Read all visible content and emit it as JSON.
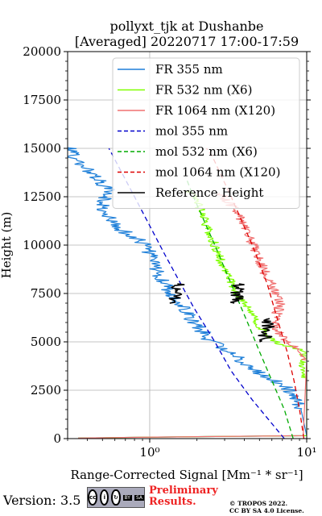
{
  "chart_data": {
    "type": "line",
    "title_line1": "pollyxt_tjk at Dushanbe",
    "title_line2": "[Averaged] 20220717 17:00-17:59",
    "xlabel": "Range-Corrected Signal [Mm⁻¹ * sr⁻¹]",
    "ylabel": "Height (m)",
    "x_scale": "log",
    "xlim": [
      0.3,
      10
    ],
    "ylim": [
      0,
      20000
    ],
    "x_ticks": [
      1,
      10
    ],
    "x_tick_labels": [
      "10⁰",
      "10¹"
    ],
    "y_ticks": [
      0,
      2500,
      5000,
      7500,
      10000,
      12500,
      15000,
      17500,
      20000
    ],
    "grid": true,
    "legend_position": "top-right",
    "legend": [
      {
        "label": "FR 355 nm",
        "color": "#1e7fd8",
        "style": "solid"
      },
      {
        "label": "FR 532 nm (X6)",
        "color": "#80ff00",
        "style": "solid"
      },
      {
        "label": "FR 1064 nm (X120)",
        "color": "#f07070",
        "style": "solid"
      },
      {
        "label": "mol 355 nm",
        "color": "#0000cc",
        "style": "dashed"
      },
      {
        "label": "mol 532 nm (X6)",
        "color": "#00aa00",
        "style": "dashed"
      },
      {
        "label": "mol 1064 nm (X120)",
        "color": "#dd0000",
        "style": "dashed"
      },
      {
        "label": "Reference Height",
        "color": "#000000",
        "style": "solid"
      }
    ],
    "series": [
      {
        "name": "FR 355 nm",
        "color": "#1e7fd8",
        "dash": "",
        "width": 1.2,
        "noise": 0.05,
        "points": [
          [
            0.35,
            30
          ],
          [
            2,
            100
          ],
          [
            10,
            150
          ],
          [
            9.2,
            1500
          ],
          [
            8.5,
            2200
          ],
          [
            7.2,
            2700
          ],
          [
            5.5,
            3200
          ],
          [
            4.5,
            3600
          ],
          [
            3.6,
            4200
          ],
          [
            3.0,
            4600
          ],
          [
            2.4,
            5100
          ],
          [
            2.2,
            5500
          ],
          [
            1.9,
            6000
          ],
          [
            1.7,
            6700
          ],
          [
            1.45,
            7300
          ],
          [
            1.25,
            8000
          ],
          [
            1.05,
            9000
          ],
          [
            0.95,
            10000
          ],
          [
            0.6,
            11000
          ],
          [
            0.5,
            12000
          ],
          [
            0.55,
            12800
          ],
          [
            0.45,
            13500
          ],
          [
            0.33,
            14500
          ],
          [
            0.3,
            15300
          ]
        ]
      },
      {
        "name": "FR 532 nm (X6)",
        "color": "#80ff00",
        "dash": "",
        "width": 1.2,
        "noise": 0.03,
        "points": [
          [
            0.35,
            30
          ],
          [
            2,
            100
          ],
          [
            10,
            150
          ],
          [
            10,
            3000
          ],
          [
            9.5,
            3600
          ],
          [
            9.8,
            4300
          ],
          [
            8.6,
            4700
          ],
          [
            6.5,
            4900
          ],
          [
            5.8,
            5300
          ],
          [
            5,
            5800
          ],
          [
            4.6,
            6300
          ],
          [
            4.2,
            6800
          ],
          [
            3.8,
            7300
          ],
          [
            3.4,
            7900
          ],
          [
            3.1,
            8500
          ],
          [
            2.8,
            9300
          ],
          [
            2.6,
            10000
          ],
          [
            2.3,
            11000
          ],
          [
            2.15,
            11700
          ],
          [
            1.95,
            12400
          ],
          [
            1.8,
            12800
          ]
        ]
      },
      {
        "name": "FR 1064 nm (X120)",
        "color": "#f07070",
        "dash": "",
        "width": 1.2,
        "noise": 0.035,
        "points": [
          [
            0.35,
            30
          ],
          [
            2,
            100
          ],
          [
            9.5,
            150
          ],
          [
            10,
            4000
          ],
          [
            9.4,
            4500
          ],
          [
            8.4,
            4800
          ],
          [
            6.8,
            5300
          ],
          [
            6.2,
            6000
          ],
          [
            6.8,
            7000
          ],
          [
            6.2,
            7800
          ],
          [
            5.5,
            8500
          ],
          [
            5.0,
            9200
          ],
          [
            4.6,
            9900
          ],
          [
            4.3,
            10500
          ],
          [
            4.0,
            11000
          ],
          [
            3.6,
            11700
          ],
          [
            3.2,
            12200
          ],
          [
            2.8,
            12700
          ]
        ]
      },
      {
        "name": "mol 355 nm",
        "color": "#0000cc",
        "dash": "6,4",
        "width": 1.3,
        "noise": 0,
        "points": [
          [
            7.2,
            0
          ],
          [
            4.5,
            2000
          ],
          [
            3.3,
            3500
          ],
          [
            2.6,
            5000
          ],
          [
            1.9,
            6800
          ],
          [
            1.25,
            9500
          ],
          [
            0.8,
            12500
          ],
          [
            0.55,
            15000
          ]
        ]
      },
      {
        "name": "mol 532 nm (X6)",
        "color": "#00aa00",
        "dash": "6,4",
        "width": 1.3,
        "noise": 0,
        "points": [
          [
            8.2,
            0
          ],
          [
            7.2,
            1500
          ],
          [
            6.0,
            3000
          ],
          [
            5.0,
            4500
          ],
          [
            4.2,
            6000
          ],
          [
            3.3,
            8000
          ],
          [
            2.6,
            10000
          ],
          [
            1.9,
            12500
          ],
          [
            1.7,
            13500
          ]
        ]
      },
      {
        "name": "mol 1064 nm (X120)",
        "color": "#dd0000",
        "dash": "6,4",
        "width": 1.3,
        "noise": 0,
        "points": [
          [
            9.6,
            0
          ],
          [
            9.0,
            1500
          ],
          [
            8.3,
            3000
          ],
          [
            7.5,
            4500
          ],
          [
            6.6,
            6000
          ],
          [
            5.6,
            8000
          ],
          [
            4.5,
            10000
          ],
          [
            3.3,
            12500
          ],
          [
            2.5,
            14600
          ],
          [
            2.3,
            15000
          ]
        ]
      },
      {
        "name": "Reference Height",
        "color": "#000000",
        "dash": "",
        "width": 1.6,
        "noise": 0.045,
        "points": [
          [
            1.4,
            7000
          ],
          [
            1.55,
            7500
          ],
          [
            1.5,
            8000
          ]
        ]
      },
      {
        "name": "Reference Height",
        "color": "#000000",
        "dash": "",
        "width": 1.6,
        "noise": 0.045,
        "points": [
          [
            3.5,
            7000
          ],
          [
            3.6,
            7500
          ],
          [
            3.7,
            8000
          ]
        ]
      },
      {
        "name": "Reference Height",
        "color": "#000000",
        "dash": "",
        "width": 1.6,
        "noise": 0.045,
        "points": [
          [
            5.3,
            5000
          ],
          [
            5.6,
            5600
          ],
          [
            5.8,
            6200
          ]
        ]
      }
    ]
  },
  "footer": {
    "version": "Version: 3.5",
    "license_badge": {
      "cc": "cc",
      "by": "BY",
      "sa": "SA"
    },
    "preliminary_line1": "Preliminary",
    "preliminary_line2": "Results.",
    "copyright_line1": "© TROPOS 2022.",
    "copyright_line2": "CC BY SA 4.0 License."
  }
}
